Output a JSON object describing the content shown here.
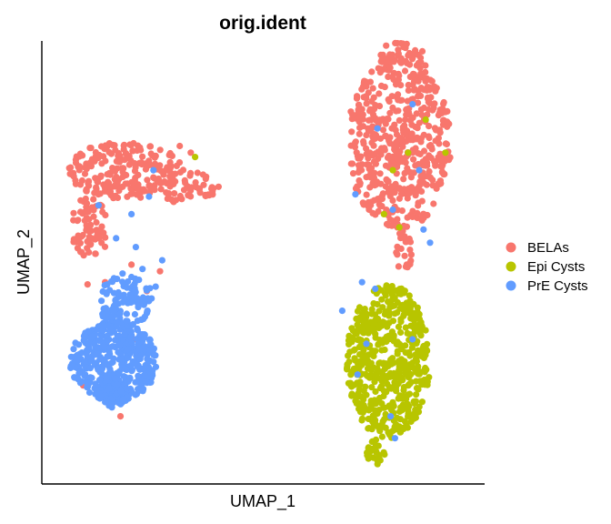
{
  "chart_data": {
    "type": "scatter",
    "title": "orig.ident",
    "xlabel": "UMAP_1",
    "ylabel": "UMAP_2",
    "xlim": [
      -10,
      10
    ],
    "ylim": [
      -10,
      10
    ],
    "show_ticks": false,
    "grid": false,
    "legend_position": "right",
    "series": [
      {
        "name": "BELAs",
        "color": "#F8766D",
        "clusters": [
          {
            "cx": -6.3,
            "cy": 4.2,
            "rx": 2.6,
            "ry": 1.3,
            "n": 220
          },
          {
            "cx": -7.9,
            "cy": 1.6,
            "rx": 0.9,
            "ry": 1.4,
            "n": 70
          },
          {
            "cx": -3.6,
            "cy": 3.5,
            "rx": 1.6,
            "ry": 0.8,
            "n": 60
          },
          {
            "cx": 6.2,
            "cy": 5.5,
            "rx": 2.4,
            "ry": 4.0,
            "n": 520
          },
          {
            "cx": 6.3,
            "cy": 9.4,
            "rx": 1.0,
            "ry": 0.7,
            "n": 40
          },
          {
            "cx": 6.4,
            "cy": 0.5,
            "rx": 0.4,
            "ry": 1.0,
            "n": 25
          }
        ],
        "points": [
          [
            -7.0,
            -3.1
          ],
          [
            -5.9,
            -3.5
          ],
          [
            -8.2,
            -5.6
          ],
          [
            -6.5,
            -7.0
          ],
          [
            -7.2,
            -0.9
          ],
          [
            -5.3,
            -1.3
          ],
          [
            -6.0,
            -0.1
          ],
          [
            -4.7,
            -0.4
          ],
          [
            -8.0,
            -1.0
          ],
          [
            -5.5,
            -1.8
          ],
          [
            -3.8,
            5.3
          ],
          [
            -3.3,
            5.0
          ]
        ]
      },
      {
        "name": "Epi Cysts",
        "color": "#B8C500",
        "clusters": [
          {
            "cx": 5.7,
            "cy": -4.5,
            "rx": 1.9,
            "ry": 3.5,
            "n": 540
          },
          {
            "cx": 5.2,
            "cy": -8.6,
            "rx": 0.5,
            "ry": 0.6,
            "n": 25
          }
        ],
        "points": [
          [
            -3.1,
            4.8
          ],
          [
            6.6,
            5.0
          ],
          [
            5.9,
            4.2
          ],
          [
            6.2,
            1.6
          ],
          [
            7.4,
            6.5
          ],
          [
            8.3,
            5.0
          ],
          [
            5.5,
            2.2
          ]
        ]
      },
      {
        "name": "PrE Cysts",
        "color": "#619CFF",
        "clusters": [
          {
            "cx": -6.8,
            "cy": -4.5,
            "rx": 2.0,
            "ry": 1.8,
            "n": 420
          },
          {
            "cx": -6.3,
            "cy": -1.7,
            "rx": 1.3,
            "ry": 1.2,
            "n": 110
          },
          {
            "cx": -6.8,
            "cy": -5.8,
            "rx": 0.8,
            "ry": 0.8,
            "n": 90
          }
        ],
        "points": [
          [
            -5.2,
            3.0
          ],
          [
            -6.0,
            2.2
          ],
          [
            -5.0,
            4.2
          ],
          [
            -7.5,
            2.6
          ],
          [
            -6.7,
            1.1
          ],
          [
            -5.8,
            0.7
          ],
          [
            -4.6,
            0.1
          ],
          [
            -5.5,
            -0.3
          ],
          [
            -4.9,
            -1.1
          ],
          [
            6.8,
            7.2
          ],
          [
            5.2,
            6.1
          ],
          [
            7.1,
            4.2
          ],
          [
            4.2,
            3.1
          ],
          [
            7.3,
            1.5
          ],
          [
            5.1,
            -1.2
          ],
          [
            4.5,
            -0.9
          ],
          [
            5.8,
            -7.0
          ],
          [
            6.0,
            -8.0
          ],
          [
            4.7,
            -3.7
          ],
          [
            6.8,
            -3.5
          ],
          [
            4.3,
            -5.1
          ],
          [
            3.6,
            -2.2
          ],
          [
            5.9,
            2.4
          ],
          [
            7.6,
            0.9
          ]
        ]
      }
    ]
  }
}
